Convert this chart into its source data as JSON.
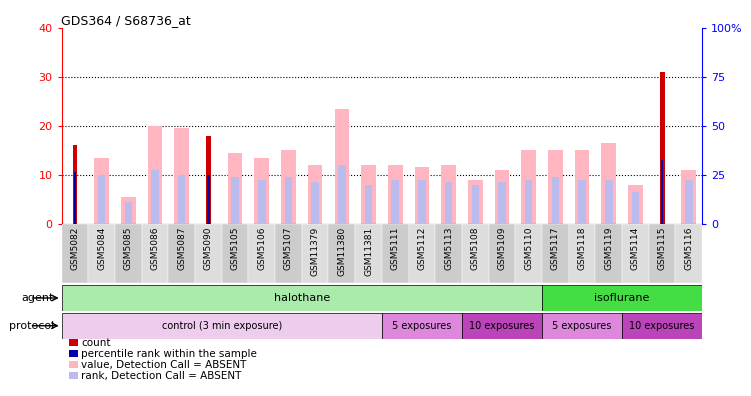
{
  "title": "GDS364 / S68736_at",
  "samples": [
    "GSM5082",
    "GSM5084",
    "GSM5085",
    "GSM5086",
    "GSM5087",
    "GSM5090",
    "GSM5105",
    "GSM5106",
    "GSM5107",
    "GSM11379",
    "GSM11380",
    "GSM11381",
    "GSM5111",
    "GSM5112",
    "GSM5113",
    "GSM5108",
    "GSM5109",
    "GSM5110",
    "GSM5117",
    "GSM5118",
    "GSM5119",
    "GSM5114",
    "GSM5115",
    "GSM5116"
  ],
  "count_values": [
    16,
    0,
    0,
    0,
    0,
    18,
    0,
    0,
    0,
    0,
    0,
    0,
    0,
    0,
    0,
    0,
    0,
    0,
    0,
    0,
    0,
    0,
    31,
    0
  ],
  "percentile_values": [
    10.5,
    0,
    0,
    0,
    0,
    10,
    0,
    0,
    0,
    0,
    0,
    0,
    0,
    0,
    0,
    0,
    0,
    0,
    0,
    0,
    0,
    0,
    13,
    0
  ],
  "absent_value": [
    0,
    13.5,
    5.5,
    20,
    19.5,
    0,
    14.5,
    13.5,
    15,
    12,
    23.5,
    12,
    12,
    11.5,
    12,
    9,
    11,
    15,
    15,
    15,
    16.5,
    8,
    0,
    11
  ],
  "absent_rank": [
    0,
    10,
    4.5,
    11,
    10,
    0,
    9.5,
    9,
    9.5,
    8.5,
    12,
    8,
    9,
    9,
    8.5,
    8,
    8.5,
    9,
    9.5,
    9,
    9,
    6.5,
    0,
    9
  ],
  "agent_groups": [
    {
      "label": "halothane",
      "start": 0,
      "end": 18,
      "color": "#AAEAAA"
    },
    {
      "label": "isoflurane",
      "start": 18,
      "end": 24,
      "color": "#44DD44"
    }
  ],
  "protocol_groups": [
    {
      "label": "control (3 min exposure)",
      "start": 0,
      "end": 12,
      "color": "#EECCEE"
    },
    {
      "label": "5 exposures",
      "start": 12,
      "end": 15,
      "color": "#DD88DD"
    },
    {
      "label": "10 exposures",
      "start": 15,
      "end": 18,
      "color": "#BB44BB"
    },
    {
      "label": "5 exposures",
      "start": 18,
      "end": 21,
      "color": "#DD88DD"
    },
    {
      "label": "10 exposures",
      "start": 21,
      "end": 24,
      "color": "#BB44BB"
    }
  ],
  "ylim_left": [
    0,
    40
  ],
  "ylim_right": [
    0,
    100
  ],
  "yticks_left": [
    0,
    10,
    20,
    30,
    40
  ],
  "yticks_right": [
    0,
    25,
    50,
    75,
    100
  ],
  "right_tick_labels": [
    "0",
    "25",
    "50",
    "75",
    "100%"
  ],
  "count_color": "#CC0000",
  "percentile_color": "#0000AA",
  "absent_value_color": "#FFB6C1",
  "absent_rank_color": "#BBBBEE"
}
